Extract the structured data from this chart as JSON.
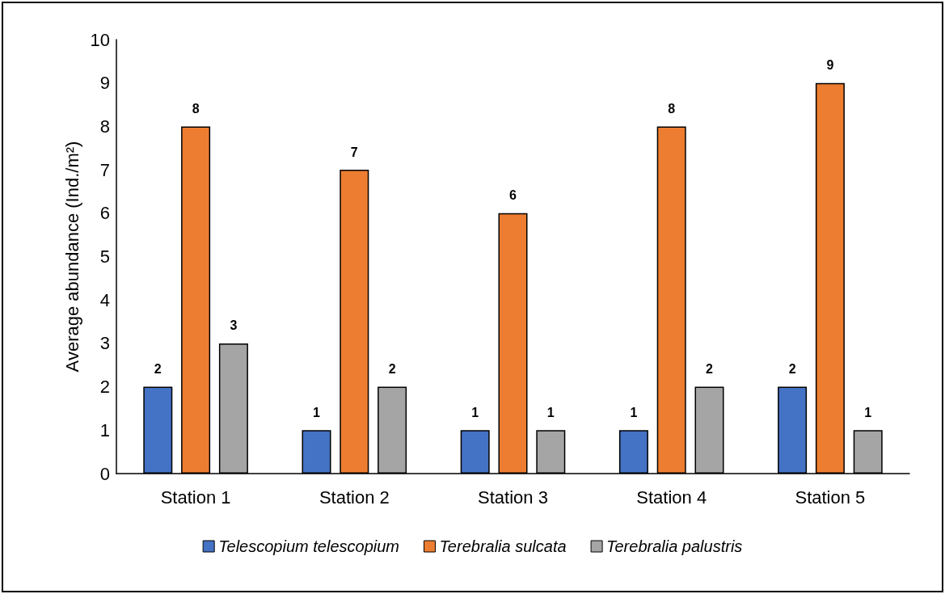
{
  "chart_data": {
    "type": "bar",
    "ylabel": "Average abundance (Ind./m²)",
    "categories": [
      "Station 1",
      "Station 2",
      "Station 3",
      "Station 4",
      "Station 5"
    ],
    "series": [
      {
        "name": "Telescopium telescopium",
        "color": "#4472c4",
        "values": [
          2,
          1,
          1,
          1,
          2
        ]
      },
      {
        "name": "Terebralia sulcata",
        "color": "#ed7d31",
        "values": [
          8,
          7,
          6,
          8,
          9
        ]
      },
      {
        "name": "Terebralia palustris",
        "color": "#a5a5a5",
        "values": [
          3,
          2,
          1,
          2,
          1
        ]
      }
    ],
    "ylim": [
      0,
      10
    ],
    "yticks": [
      0,
      1,
      2,
      3,
      4,
      5,
      6,
      7,
      8,
      9,
      10
    ],
    "grid": false,
    "legend": "bottom",
    "data_labels": true
  }
}
